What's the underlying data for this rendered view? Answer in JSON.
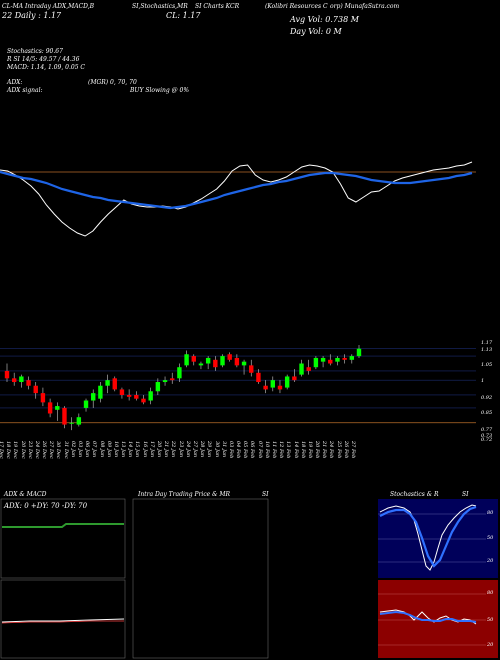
{
  "header": {
    "line1_left": "CL-MA Intraday ADX,MACD,B",
    "line1_mid": "SI,Stochastics,MR",
    "line1_mid2": "SI Charts KCR",
    "line1_right": "(Kolibri  Resources C",
    "line1_right2": "orp) MunafaSutra.com",
    "line2_left": "22  Daily : 1.17",
    "line2_mid": "CL: 1.17",
    "avg_vol": "Avg Vol: 0.738  M",
    "day_vol": "Day Vol: 0   M"
  },
  "indicators": {
    "stoch": "Stochastics: 90.67",
    "rsi": "R      SI 14/5: 49.57 / 44.36",
    "macd": "MACD: 1.14,  1.09, 0.05 C",
    "adx": "ADX:",
    "adx_val": "(MGR) 0,  70,  70",
    "adx_signal": "ADX  signal:",
    "buy_signal": "BUY Slowing @ 0%"
  },
  "price_axis": [
    "1.17",
    "1.13",
    "1.05",
    "1",
    "0.92",
    "0.85",
    "0.77",
    "0.73",
    "0.72"
  ],
  "dates": [
    "17 Dec",
    "18 Dec",
    "19 Dec",
    "20 Dec",
    "23 Dec",
    "24 Dec",
    "26 Dec",
    "27 Dec",
    "30 Dec",
    "31 Dec",
    "02 Jan",
    "03 Jan",
    "06 Jan",
    "07 Jan",
    "08 Jan",
    "09 Jan",
    "10 Jan",
    "13 Jan",
    "14 Jan",
    "15 Jan",
    "16 Jan",
    "17 Jan",
    "20 Jan",
    "21 Jan",
    "22 Jan",
    "23 Jan",
    "24 Jan",
    "27 Jan",
    "28 Jan",
    "29 Jan",
    "30 Jan",
    "31 Jan",
    "03 Feb",
    "04 Feb",
    "05 Feb",
    "06 Feb",
    "07 Feb",
    "10 Feb",
    "11 Feb",
    "12 Feb",
    "13 Feb",
    "14 Feb",
    "18 Feb",
    "19 Feb",
    "20 Feb",
    "21 Feb",
    "24 Feb",
    "25 Feb",
    "26 Feb",
    "27 Feb"
  ],
  "candles": [
    {
      "o": 1.05,
      "h": 1.09,
      "l": 0.99,
      "c": 1.01
    },
    {
      "o": 1.01,
      "h": 1.04,
      "l": 0.97,
      "c": 0.99
    },
    {
      "o": 0.99,
      "h": 1.03,
      "l": 0.96,
      "c": 1.02
    },
    {
      "o": 1.0,
      "h": 1.02,
      "l": 0.95,
      "c": 0.97
    },
    {
      "o": 0.97,
      "h": 0.99,
      "l": 0.9,
      "c": 0.93
    },
    {
      "o": 0.93,
      "h": 0.96,
      "l": 0.86,
      "c": 0.88
    },
    {
      "o": 0.88,
      "h": 0.9,
      "l": 0.8,
      "c": 0.82
    },
    {
      "o": 0.84,
      "h": 0.88,
      "l": 0.78,
      "c": 0.86
    },
    {
      "o": 0.85,
      "h": 0.86,
      "l": 0.74,
      "c": 0.76
    },
    {
      "o": 0.77,
      "h": 0.8,
      "l": 0.73,
      "c": 0.77
    },
    {
      "o": 0.76,
      "h": 0.82,
      "l": 0.75,
      "c": 0.8
    },
    {
      "o": 0.85,
      "h": 0.9,
      "l": 0.83,
      "c": 0.89
    },
    {
      "o": 0.89,
      "h": 0.95,
      "l": 0.85,
      "c": 0.93
    },
    {
      "o": 0.9,
      "h": 0.99,
      "l": 0.88,
      "c": 0.97
    },
    {
      "o": 0.97,
      "h": 1.03,
      "l": 0.93,
      "c": 1.0
    },
    {
      "o": 1.01,
      "h": 1.02,
      "l": 0.94,
      "c": 0.95
    },
    {
      "o": 0.95,
      "h": 0.96,
      "l": 0.9,
      "c": 0.92
    },
    {
      "o": 0.92,
      "h": 0.95,
      "l": 0.89,
      "c": 0.91
    },
    {
      "o": 0.92,
      "h": 0.94,
      "l": 0.89,
      "c": 0.9
    },
    {
      "o": 0.9,
      "h": 0.92,
      "l": 0.87,
      "c": 0.88
    },
    {
      "o": 0.89,
      "h": 0.96,
      "l": 0.87,
      "c": 0.94
    },
    {
      "o": 0.94,
      "h": 1.01,
      "l": 0.92,
      "c": 0.99
    },
    {
      "o": 0.99,
      "h": 1.02,
      "l": 0.97,
      "c": 1.0
    },
    {
      "o": 1.01,
      "h": 1.04,
      "l": 0.98,
      "c": 1.0
    },
    {
      "o": 1.01,
      "h": 1.09,
      "l": 0.99,
      "c": 1.07
    },
    {
      "o": 1.08,
      "h": 1.16,
      "l": 1.07,
      "c": 1.14
    },
    {
      "o": 1.13,
      "h": 1.14,
      "l": 1.08,
      "c": 1.1
    },
    {
      "o": 1.08,
      "h": 1.1,
      "l": 1.06,
      "c": 1.09
    },
    {
      "o": 1.09,
      "h": 1.13,
      "l": 1.06,
      "c": 1.12
    },
    {
      "o": 1.11,
      "h": 1.13,
      "l": 1.05,
      "c": 1.07
    },
    {
      "o": 1.08,
      "h": 1.14,
      "l": 1.07,
      "c": 1.13
    },
    {
      "o": 1.14,
      "h": 1.15,
      "l": 1.1,
      "c": 1.11
    },
    {
      "o": 1.12,
      "h": 1.14,
      "l": 1.07,
      "c": 1.08
    },
    {
      "o": 1.08,
      "h": 1.11,
      "l": 1.03,
      "c": 1.1
    },
    {
      "o": 1.08,
      "h": 1.11,
      "l": 1.02,
      "c": 1.04
    },
    {
      "o": 1.04,
      "h": 1.06,
      "l": 0.98,
      "c": 0.99
    },
    {
      "o": 0.97,
      "h": 1.0,
      "l": 0.93,
      "c": 0.95
    },
    {
      "o": 0.96,
      "h": 1.02,
      "l": 0.94,
      "c": 1.0
    },
    {
      "o": 0.97,
      "h": 1.0,
      "l": 0.93,
      "c": 0.95
    },
    {
      "o": 0.96,
      "h": 1.03,
      "l": 0.95,
      "c": 1.02
    },
    {
      "o": 1.02,
      "h": 1.06,
      "l": 0.99,
      "c": 1.0
    },
    {
      "o": 1.03,
      "h": 1.11,
      "l": 1.02,
      "c": 1.09
    },
    {
      "o": 1.07,
      "h": 1.11,
      "l": 1.03,
      "c": 1.05
    },
    {
      "o": 1.07,
      "h": 1.13,
      "l": 1.06,
      "c": 1.12
    },
    {
      "o": 1.1,
      "h": 1.13,
      "l": 1.07,
      "c": 1.12
    },
    {
      "o": 1.11,
      "h": 1.14,
      "l": 1.08,
      "c": 1.09
    },
    {
      "o": 1.1,
      "h": 1.13,
      "l": 1.08,
      "c": 1.12
    },
    {
      "o": 1.12,
      "h": 1.14,
      "l": 1.09,
      "c": 1.11
    },
    {
      "o": 1.11,
      "h": 1.14,
      "l": 1.09,
      "c": 1.13
    },
    {
      "o": 1.13,
      "h": 1.19,
      "l": 1.12,
      "c": 1.17
    }
  ],
  "ma_white": [
    170,
    171,
    175,
    180,
    186,
    194,
    205,
    214,
    222,
    228,
    233,
    236,
    231,
    222,
    214,
    207,
    200,
    204,
    206,
    207,
    207,
    206,
    207,
    209,
    207,
    203,
    199,
    194,
    189,
    181,
    171,
    166,
    165,
    175,
    180,
    182,
    180,
    177,
    172,
    167,
    165,
    166,
    168,
    172,
    184,
    198,
    202,
    197,
    192,
    191,
    186,
    181,
    178,
    176,
    174,
    172,
    170,
    169,
    168,
    166,
    165,
    162
  ],
  "ma_blue": [
    172,
    174,
    176,
    178,
    179,
    181,
    183,
    186,
    189,
    191,
    193,
    195,
    197,
    198,
    200,
    201,
    202,
    203,
    204,
    205,
    206,
    207,
    208,
    207,
    206,
    204,
    202,
    200,
    198,
    195,
    193,
    191,
    189,
    187,
    185,
    184,
    182,
    181,
    179,
    177,
    175,
    174,
    173,
    173,
    174,
    175,
    176,
    178,
    180,
    181,
    182,
    183,
    183,
    183,
    182,
    181,
    180,
    179,
    178,
    176,
    175,
    173
  ],
  "panels": {
    "adx_title": "ADX  & MACD",
    "adx_legend": "ADX: 0  +DY: 70  -DY: 70",
    "intraday_title": "Intra  Day Trading Price  & MR",
    "intraday_title2": "SI",
    "stoch_title": "Stochastics & R",
    "stoch_title2": "SI",
    "stoch_axis": [
      "80",
      "50",
      "20"
    ],
    "rsi_axis": [
      "80",
      "50",
      "20"
    ]
  },
  "colors": {
    "up": "#00ff00",
    "down": "#ff0000",
    "ma_blue": "#1e64e6",
    "orange_line": "#b86c2a",
    "navy_panel": "#00005a",
    "red_panel": "#8c0000",
    "adx_green": "#2e9a2e"
  }
}
